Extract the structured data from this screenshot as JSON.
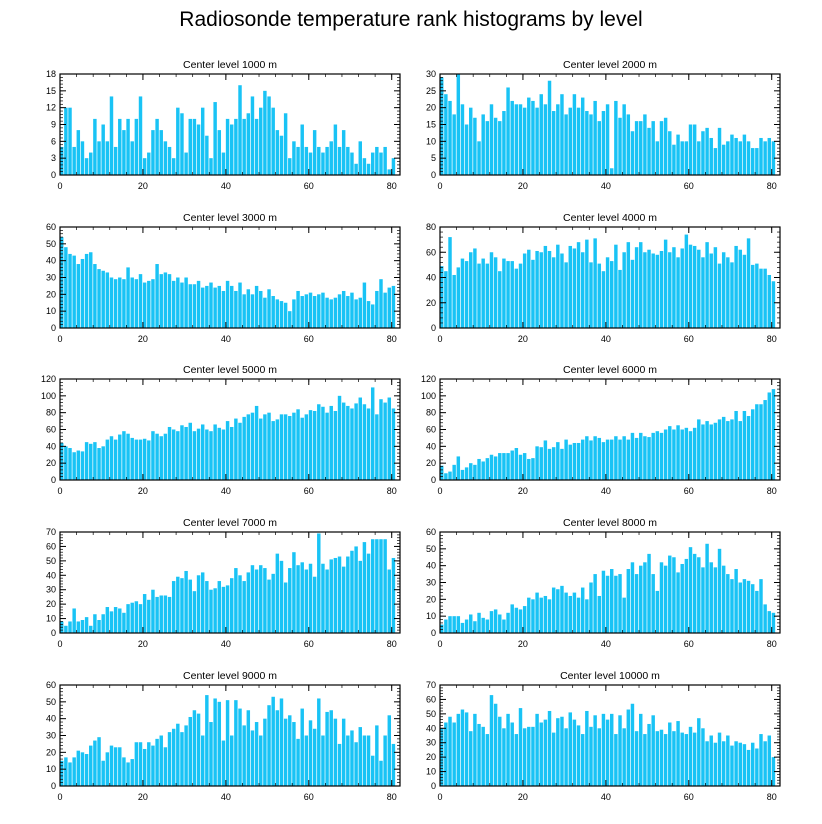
{
  "title": "Radiosonde temperature rank histograms by level",
  "chart_data": [
    {
      "type": "bar",
      "title": "Center level 1000 m",
      "xlabel": "",
      "ylabel": "",
      "xlim": [
        0,
        82
      ],
      "ylim": [
        0,
        18
      ],
      "x_ticks": [
        0,
        20,
        40,
        60,
        80
      ],
      "y_ticks": [
        0,
        3,
        6,
        9,
        12,
        15,
        18
      ],
      "values": [
        5,
        12,
        12,
        5,
        8,
        6,
        3,
        4,
        10,
        6,
        9,
        6,
        14,
        5,
        10,
        8,
        10,
        6,
        10,
        14,
        3,
        4,
        8,
        10,
        8,
        6,
        5,
        3,
        12,
        11,
        4,
        10,
        10,
        9,
        12,
        7,
        3,
        13,
        8,
        4,
        10,
        9,
        10,
        16,
        10,
        11,
        14,
        10,
        12,
        15,
        14,
        12,
        8,
        7,
        11,
        3,
        6,
        5,
        9,
        5,
        4,
        8,
        5,
        4,
        5,
        6,
        9,
        5,
        8,
        5,
        4,
        2,
        6,
        3,
        2,
        4,
        5,
        4,
        5,
        1,
        3
      ]
    },
    {
      "type": "bar",
      "title": "Center level 2000 m",
      "xlabel": "",
      "ylabel": "",
      "xlim": [
        0,
        82
      ],
      "ylim": [
        0,
        30
      ],
      "x_ticks": [
        0,
        20,
        40,
        60,
        80
      ],
      "y_ticks": [
        0,
        5,
        10,
        15,
        20,
        25,
        30
      ],
      "values": [
        29,
        24,
        22,
        18,
        30,
        21,
        15,
        20,
        17,
        10,
        18,
        16,
        21,
        17,
        16,
        19,
        26,
        22,
        21,
        21,
        20,
        23,
        22,
        20,
        24,
        21,
        28,
        19,
        21,
        24,
        18,
        20,
        24,
        20,
        23,
        19,
        18,
        22,
        16,
        19,
        21,
        2,
        22,
        17,
        21,
        18,
        13,
        16,
        16,
        18,
        14,
        16,
        10,
        16,
        17,
        13,
        9,
        12,
        10,
        10,
        15,
        15,
        10,
        13,
        14,
        11,
        8,
        14,
        9,
        10,
        12,
        11,
        10,
        12,
        10,
        8,
        8,
        11,
        10,
        11,
        10
      ]
    },
    {
      "type": "bar",
      "title": "Center level 3000 m",
      "xlabel": "",
      "ylabel": "",
      "xlim": [
        0,
        82
      ],
      "ylim": [
        0,
        60
      ],
      "x_ticks": [
        0,
        20,
        40,
        60,
        80
      ],
      "y_ticks": [
        0,
        10,
        20,
        30,
        40,
        50,
        60
      ],
      "values": [
        54,
        48,
        44,
        43,
        38,
        41,
        44,
        45,
        38,
        35,
        34,
        33,
        30,
        29,
        30,
        29,
        36,
        30,
        29,
        32,
        27,
        28,
        29,
        38,
        32,
        33,
        32,
        28,
        30,
        27,
        30,
        26,
        26,
        28,
        24,
        25,
        27,
        24,
        25,
        22,
        28,
        25,
        22,
        27,
        20,
        23,
        20,
        25,
        22,
        18,
        23,
        19,
        17,
        16,
        15,
        10,
        17,
        22,
        19,
        20,
        21,
        19,
        20,
        21,
        18,
        17,
        18,
        20,
        22,
        19,
        21,
        17,
        18,
        27,
        16,
        14,
        22,
        29,
        21,
        24,
        25
      ]
    },
    {
      "type": "bar",
      "title": "Center level 4000 m",
      "xlabel": "",
      "ylabel": "",
      "xlim": [
        0,
        82
      ],
      "ylim": [
        0,
        80
      ],
      "x_ticks": [
        0,
        20,
        40,
        60,
        80
      ],
      "y_ticks": [
        0,
        20,
        40,
        60,
        80
      ],
      "values": [
        49,
        45,
        72,
        42,
        48,
        55,
        53,
        60,
        63,
        51,
        55,
        51,
        60,
        56,
        45,
        55,
        53,
        53,
        47,
        51,
        59,
        62,
        54,
        61,
        60,
        65,
        61,
        56,
        66,
        59,
        52,
        65,
        63,
        68,
        60,
        70,
        52,
        71,
        51,
        45,
        56,
        53,
        66,
        46,
        60,
        68,
        54,
        64,
        68,
        60,
        62,
        59,
        58,
        61,
        70,
        60,
        64,
        56,
        63,
        74,
        66,
        65,
        62,
        56,
        68,
        59,
        64,
        51,
        60,
        56,
        52,
        65,
        62,
        58,
        71,
        50,
        51,
        47,
        47,
        42,
        37
      ]
    },
    {
      "type": "bar",
      "title": "Center level 5000 m",
      "xlabel": "",
      "ylabel": "",
      "xlim": [
        0,
        82
      ],
      "ylim": [
        0,
        120
      ],
      "x_ticks": [
        0,
        20,
        40,
        60,
        80
      ],
      "y_ticks": [
        0,
        20,
        40,
        60,
        80,
        100,
        120
      ],
      "values": [
        44,
        40,
        38,
        33,
        35,
        34,
        45,
        43,
        45,
        38,
        40,
        48,
        52,
        48,
        54,
        58,
        55,
        50,
        48,
        48,
        49,
        47,
        58,
        55,
        52,
        55,
        63,
        60,
        58,
        65,
        63,
        68,
        58,
        61,
        66,
        60,
        58,
        66,
        62,
        60,
        70,
        63,
        73,
        68,
        75,
        78,
        80,
        88,
        73,
        78,
        80,
        70,
        72,
        78,
        78,
        76,
        80,
        84,
        74,
        78,
        83,
        82,
        90,
        87,
        80,
        88,
        82,
        100,
        92,
        88,
        85,
        91,
        98,
        90,
        85,
        110,
        78,
        96,
        92,
        98,
        85
      ]
    },
    {
      "type": "bar",
      "title": "Center level 6000 m",
      "xlabel": "",
      "ylabel": "",
      "xlim": [
        0,
        82
      ],
      "ylim": [
        0,
        120
      ],
      "x_ticks": [
        0,
        20,
        40,
        60,
        80
      ],
      "y_ticks": [
        0,
        20,
        40,
        60,
        80,
        100,
        120
      ],
      "values": [
        17,
        8,
        10,
        18,
        28,
        12,
        15,
        20,
        18,
        25,
        22,
        26,
        30,
        28,
        32,
        32,
        32,
        35,
        38,
        30,
        32,
        25,
        26,
        40,
        39,
        47,
        37,
        39,
        45,
        37,
        48,
        42,
        44,
        44,
        48,
        52,
        47,
        52,
        50,
        45,
        48,
        48,
        52,
        48,
        52,
        48,
        56,
        50,
        56,
        52,
        51,
        56,
        58,
        56,
        60,
        64,
        60,
        65,
        60,
        62,
        58,
        62,
        72,
        66,
        70,
        66,
        68,
        72,
        75,
        70,
        72,
        82,
        70,
        82,
        76,
        84,
        90,
        90,
        95,
        104,
        108
      ]
    },
    {
      "type": "bar",
      "title": "Center level 7000 m",
      "xlabel": "",
      "ylabel": "",
      "xlim": [
        0,
        82
      ],
      "ylim": [
        0,
        70
      ],
      "x_ticks": [
        0,
        20,
        40,
        60,
        80
      ],
      "y_ticks": [
        0,
        10,
        20,
        30,
        40,
        50,
        60,
        70
      ],
      "values": [
        8,
        5,
        8,
        17,
        8,
        9,
        11,
        5,
        13,
        9,
        13,
        18,
        15,
        18,
        17,
        14,
        20,
        21,
        22,
        20,
        27,
        23,
        30,
        25,
        26,
        26,
        25,
        36,
        39,
        38,
        43,
        37,
        29,
        40,
        42,
        36,
        30,
        31,
        36,
        32,
        33,
        38,
        45,
        40,
        36,
        42,
        47,
        44,
        47,
        45,
        37,
        41,
        55,
        50,
        35,
        45,
        56,
        47,
        49,
        44,
        48,
        39,
        69,
        48,
        44,
        51,
        52,
        53,
        46,
        53,
        57,
        60,
        50,
        63,
        55,
        65,
        65,
        65,
        65,
        44,
        52
      ]
    },
    {
      "type": "bar",
      "title": "Center level 8000 m",
      "xlabel": "",
      "ylabel": "",
      "xlim": [
        0,
        82
      ],
      "ylim": [
        0,
        60
      ],
      "x_ticks": [
        0,
        20,
        40,
        60,
        80
      ],
      "y_ticks": [
        0,
        10,
        20,
        30,
        40,
        50,
        60
      ],
      "values": [
        5,
        8,
        10,
        10,
        10,
        6,
        8,
        11,
        7,
        12,
        9,
        8,
        13,
        14,
        11,
        8,
        12,
        17,
        15,
        14,
        16,
        21,
        20,
        24,
        21,
        22,
        20,
        27,
        26,
        28,
        24,
        22,
        24,
        21,
        27,
        20,
        30,
        35,
        22,
        37,
        34,
        38,
        34,
        35,
        21,
        38,
        42,
        35,
        40,
        42,
        47,
        35,
        25,
        42,
        40,
        46,
        45,
        36,
        41,
        44,
        51,
        47,
        45,
        39,
        53,
        42,
        39,
        50,
        40,
        35,
        32,
        38,
        30,
        32,
        31,
        29,
        25,
        32,
        17,
        13,
        12
      ]
    },
    {
      "type": "bar",
      "title": "Center level 9000 m",
      "xlabel": "",
      "ylabel": "",
      "xlim": [
        0,
        82
      ],
      "ylim": [
        0,
        60
      ],
      "x_ticks": [
        0,
        20,
        40,
        60,
        80
      ],
      "y_ticks": [
        0,
        10,
        20,
        30,
        40,
        50,
        60
      ],
      "values": [
        15,
        17,
        14,
        17,
        21,
        20,
        19,
        24,
        27,
        29,
        15,
        20,
        24,
        23,
        23,
        17,
        14,
        16,
        26,
        26,
        22,
        26,
        24,
        28,
        30,
        23,
        32,
        34,
        37,
        32,
        36,
        41,
        45,
        43,
        30,
        54,
        38,
        52,
        50,
        27,
        51,
        30,
        51,
        46,
        36,
        45,
        33,
        38,
        30,
        40,
        48,
        53,
        45,
        52,
        40,
        42,
        38,
        28,
        46,
        30,
        39,
        34,
        52,
        30,
        44,
        45,
        40,
        25,
        40,
        30,
        33,
        26,
        35,
        30,
        30,
        18,
        36,
        15,
        30,
        42,
        25
      ]
    },
    {
      "type": "bar",
      "title": "Center level 10000 m",
      "xlabel": "",
      "ylabel": "",
      "xlim": [
        0,
        82
      ],
      "ylim": [
        0,
        70
      ],
      "x_ticks": [
        0,
        20,
        40,
        60,
        80
      ],
      "y_ticks": [
        0,
        10,
        20,
        30,
        40,
        50,
        60,
        70
      ],
      "values": [
        40,
        44,
        48,
        44,
        50,
        53,
        51,
        38,
        50,
        43,
        41,
        36,
        63,
        57,
        48,
        40,
        50,
        44,
        36,
        54,
        40,
        41,
        41,
        50,
        44,
        46,
        52,
        37,
        47,
        48,
        40,
        51,
        46,
        42,
        36,
        52,
        41,
        49,
        40,
        50,
        46,
        50,
        36,
        49,
        40,
        53,
        57,
        38,
        50,
        36,
        43,
        49,
        38,
        39,
        36,
        44,
        38,
        45,
        37,
        36,
        41,
        37,
        47,
        40,
        31,
        35,
        30,
        37,
        31,
        35,
        28,
        31,
        30,
        29,
        25,
        30,
        26,
        36,
        31,
        35,
        20
      ]
    }
  ]
}
